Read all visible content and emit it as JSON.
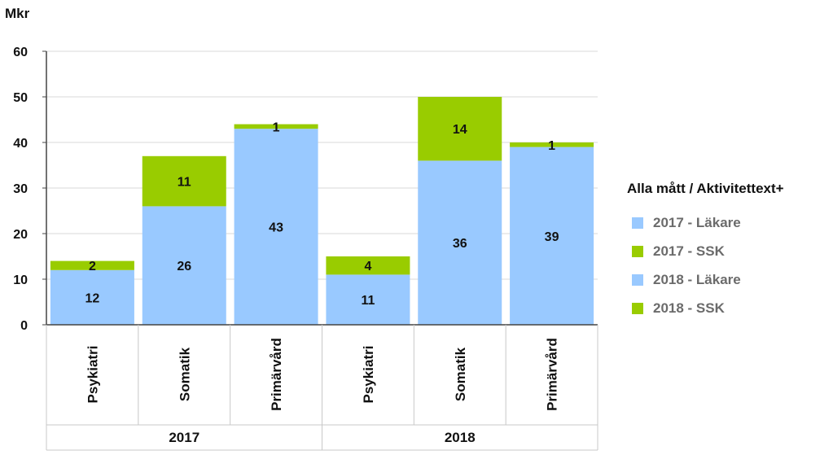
{
  "chart_data": {
    "type": "bar",
    "stacked": true,
    "ylabel": "Mkr",
    "ylim": [
      0,
      60
    ],
    "yticks": [
      0,
      10,
      20,
      30,
      40,
      50,
      60
    ],
    "grid": true,
    "groups": [
      {
        "label": "2017",
        "categories": [
          "Psykiatri",
          "Somatik",
          "Primärvård"
        ]
      },
      {
        "label": "2018",
        "categories": [
          "Psykiatri",
          "Somatik",
          "Primärvård"
        ]
      }
    ],
    "bars": [
      {
        "group": "2017",
        "category": "Psykiatri",
        "segments": [
          {
            "series": "2017 - Läkare",
            "value": 12
          },
          {
            "series": "2017 - SSK",
            "value": 2
          }
        ]
      },
      {
        "group": "2017",
        "category": "Somatik",
        "segments": [
          {
            "series": "2017 - Läkare",
            "value": 26
          },
          {
            "series": "2017 - SSK",
            "value": 11
          }
        ]
      },
      {
        "group": "2017",
        "category": "Primärvård",
        "segments": [
          {
            "series": "2017 - Läkare",
            "value": 43
          },
          {
            "series": "2017 - SSK",
            "value": 1
          }
        ]
      },
      {
        "group": "2018",
        "category": "Psykiatri",
        "segments": [
          {
            "series": "2018 - Läkare",
            "value": 11
          },
          {
            "series": "2018 - SSK",
            "value": 4
          }
        ]
      },
      {
        "group": "2018",
        "category": "Somatik",
        "segments": [
          {
            "series": "2018 - Läkare",
            "value": 36
          },
          {
            "series": "2018 - SSK",
            "value": 14
          }
        ]
      },
      {
        "group": "2018",
        "category": "Primärvård",
        "segments": [
          {
            "series": "2018 - Läkare",
            "value": 39
          },
          {
            "series": "2018 - SSK",
            "value": 1
          }
        ]
      }
    ],
    "legend": {
      "title": "Alla mått / Aktivitettext+",
      "position": "right",
      "items": [
        {
          "name": "2017 - Läkare",
          "color": "#99c9ff"
        },
        {
          "name": "2017 - SSK",
          "color": "#99cc00"
        },
        {
          "name": "2018 - Läkare",
          "color": "#99c9ff"
        },
        {
          "name": "2018 - SSK",
          "color": "#99cc00"
        }
      ]
    }
  }
}
